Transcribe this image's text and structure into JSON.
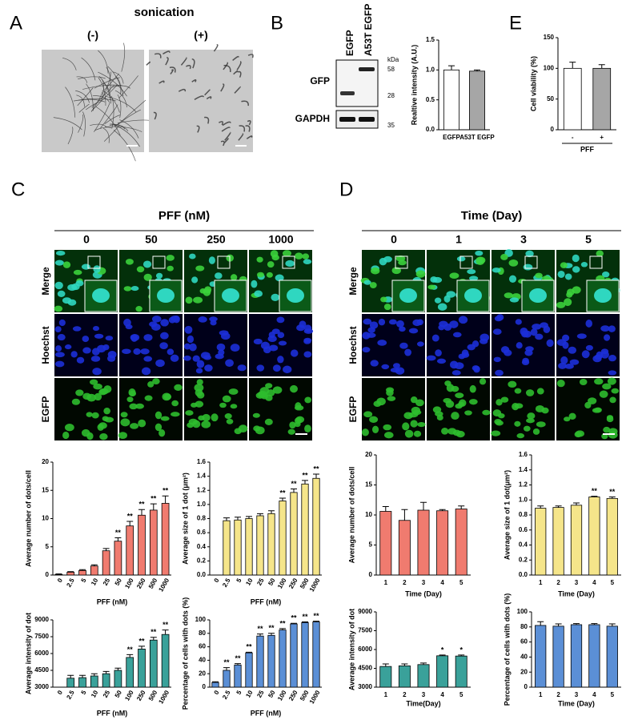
{
  "figure": {
    "letters": [
      "A",
      "B",
      "C",
      "D",
      "E"
    ],
    "panel_a": {
      "title": "sonication",
      "labels": [
        "(-)",
        "(+)"
      ]
    },
    "blot": {
      "lanes": [
        "EGFP",
        "A53T EGFP"
      ],
      "unit": "kDa",
      "markers": [
        "58",
        "28",
        "35"
      ],
      "rows": [
        "GFP",
        "GAPDH"
      ]
    },
    "panel_c": {
      "title": "PFF (nM)",
      "columns": [
        "0",
        "50",
        "250",
        "1000"
      ],
      "rows": [
        "Merge",
        "Hoechst",
        "EGFP"
      ]
    },
    "panel_d": {
      "title": "Time (Day)",
      "columns": [
        "0",
        "1",
        "3",
        "5"
      ],
      "rows": [
        "Merge",
        "Hoechst",
        "EGFP"
      ]
    }
  },
  "chart_data": [
    {
      "type": "bar",
      "ylabel": "Realtive intensity (A.U.)",
      "categories": [
        "EGFP",
        "A53T EGFP"
      ],
      "values": [
        1.0,
        0.98
      ],
      "errors": [
        0.07,
        0.02
      ],
      "colors": [
        "#ffffff",
        "#a6a6a6"
      ],
      "ylim": [
        0,
        1.5
      ],
      "yticks": [
        {
          "value": 0,
          "label": "0.0"
        },
        0.5,
        {
          "value": 1,
          "label": "1.0"
        },
        1.5
      ]
    },
    {
      "type": "bar",
      "ylabel": "Cell viability (%)",
      "xlabel": "PFF",
      "categories": [
        "-",
        "+"
      ],
      "values": [
        100,
        100
      ],
      "errors": [
        10,
        6
      ],
      "colors": [
        "#ffffff",
        "#a6a6a6"
      ],
      "ylim": [
        0,
        150
      ],
      "yticks": [
        0,
        50,
        100,
        150
      ]
    },
    {
      "type": "bar",
      "ylabel": "Average number of dots/cell",
      "xlabel": "PFF (nM)",
      "categories": [
        "0",
        "2.5",
        "5",
        "10",
        "25",
        "50",
        "100",
        "250",
        "500",
        "1000"
      ],
      "values": [
        0.1,
        0.5,
        0.8,
        1.6,
        4.3,
        6.0,
        8.7,
        10.6,
        11.5,
        12.7
      ],
      "errors": [
        0.1,
        0.1,
        0.15,
        0.2,
        0.4,
        0.6,
        0.8,
        1.0,
        1.1,
        1.3
      ],
      "annotations": [
        null,
        null,
        null,
        null,
        null,
        "**",
        "**",
        "**",
        "**",
        "**"
      ],
      "color": "#f07b6f",
      "ylim": [
        0,
        20
      ],
      "yticks": [
        0,
        5,
        10,
        15,
        20
      ]
    },
    {
      "type": "bar",
      "ylabel": "Average size of 1 dot (μm²)",
      "xlabel": "PFF (nM)",
      "categories": [
        "0",
        "2.5",
        "5",
        "10",
        "25",
        "50",
        "100",
        "250",
        "500",
        "1000"
      ],
      "values": [
        null,
        0.77,
        0.78,
        0.8,
        0.84,
        0.87,
        1.05,
        1.17,
        1.29,
        1.37
      ],
      "errors": [
        null,
        0.04,
        0.04,
        0.03,
        0.03,
        0.04,
        0.04,
        0.05,
        0.05,
        0.06
      ],
      "annotations": [
        null,
        null,
        null,
        null,
        null,
        null,
        "**",
        "**",
        "**",
        "**"
      ],
      "color": "#f5e58a",
      "ylim": [
        0,
        1.6
      ],
      "yticks": [
        {
          "value": 0,
          "label": "0.0"
        },
        0.2,
        0.4,
        0.6,
        0.8,
        {
          "value": 1,
          "label": "1.0"
        },
        1.2,
        1.4,
        1.6
      ]
    },
    {
      "type": "bar",
      "ylabel": "Average intensity of dot",
      "xlabel": "PFF (nM)",
      "categories": [
        "0",
        "2.5",
        "5",
        "10",
        "25",
        "50",
        "100",
        "250",
        "500",
        "1000"
      ],
      "values": [
        null,
        3800,
        3850,
        4000,
        4200,
        4500,
        5650,
        6400,
        7200,
        7700
      ],
      "errors": [
        null,
        250,
        200,
        200,
        200,
        200,
        250,
        250,
        250,
        400
      ],
      "annotations": [
        null,
        null,
        null,
        null,
        null,
        null,
        "**",
        "**",
        "**",
        "**"
      ],
      "color": "#3aa19a",
      "ylim": [
        3000,
        9000
      ],
      "yticks": [
        3000,
        4500,
        6000,
        7500,
        9000
      ]
    },
    {
      "type": "bar",
      "ylabel": "Percentage of cells with dots (%)",
      "xlabel": "PFF (nM)",
      "categories": [
        "0",
        "2.5",
        "5",
        "10",
        "25",
        "50",
        "100",
        "250",
        "500",
        "1000"
      ],
      "values": [
        7,
        25,
        33,
        51,
        76,
        77,
        85,
        94,
        96,
        97
      ],
      "errors": [
        1,
        4,
        2,
        1,
        3,
        3,
        2,
        1,
        1,
        1
      ],
      "annotations": [
        null,
        "**",
        "**",
        "**",
        "**",
        "**",
        "**",
        "**",
        "**",
        "**"
      ],
      "color": "#5b8fd6",
      "ylim": [
        0,
        100
      ],
      "yticks": [
        0,
        20,
        40,
        60,
        80,
        100
      ]
    },
    {
      "type": "bar",
      "ylabel": "Average number of dots/cell",
      "xlabel": "Time (Day)",
      "categories": [
        "1",
        "2",
        "3",
        "4",
        "5"
      ],
      "values": [
        10.6,
        9.1,
        10.8,
        10.7,
        11.0
      ],
      "errors": [
        0.8,
        1.8,
        1.3,
        0.2,
        0.5
      ],
      "color": "#f07b6f",
      "ylim": [
        0,
        20
      ],
      "yticks": [
        0,
        5,
        10,
        15,
        20
      ]
    },
    {
      "type": "bar",
      "ylabel": "Average size of 1 dot(μm²)",
      "xlabel": "Time (Day)",
      "categories": [
        "1",
        "2",
        "3",
        "4",
        "5"
      ],
      "values": [
        0.89,
        0.9,
        0.93,
        1.04,
        1.02
      ],
      "errors": [
        0.03,
        0.02,
        0.03,
        0.01,
        0.02
      ],
      "annotations": [
        null,
        null,
        null,
        "**",
        "**"
      ],
      "color": "#f5e58a",
      "ylim": [
        0,
        1.6
      ],
      "yticks": [
        {
          "value": 0,
          "label": "0.0"
        },
        0.2,
        0.4,
        0.6,
        0.8,
        {
          "value": 1,
          "label": "1.0"
        },
        1.2,
        1.4,
        1.6
      ]
    },
    {
      "type": "bar",
      "ylabel": "Average intensity of dot",
      "xlabel": "Time(Day)",
      "categories": [
        "1",
        "2",
        "3",
        "4",
        "5"
      ],
      "values": [
        4650,
        4700,
        4800,
        5500,
        5480
      ],
      "errors": [
        200,
        150,
        120,
        60,
        80
      ],
      "annotations": [
        null,
        null,
        null,
        "*",
        "*"
      ],
      "color": "#3aa19a",
      "ylim": [
        3000,
        9000
      ],
      "yticks": [
        3000,
        4500,
        6000,
        7500,
        9000
      ]
    },
    {
      "type": "bar",
      "ylabel": "Percentage of cells with dots (%)",
      "xlabel": "Time (Day)",
      "categories": [
        "1",
        "2",
        "3",
        "4",
        "5"
      ],
      "values": [
        82,
        81,
        83,
        83,
        81
      ],
      "errors": [
        5,
        3,
        1.5,
        1.5,
        3
      ],
      "color": "#5b8fd6",
      "ylim": [
        0,
        100
      ],
      "yticks": [
        0,
        20,
        40,
        60,
        80,
        100
      ]
    }
  ]
}
